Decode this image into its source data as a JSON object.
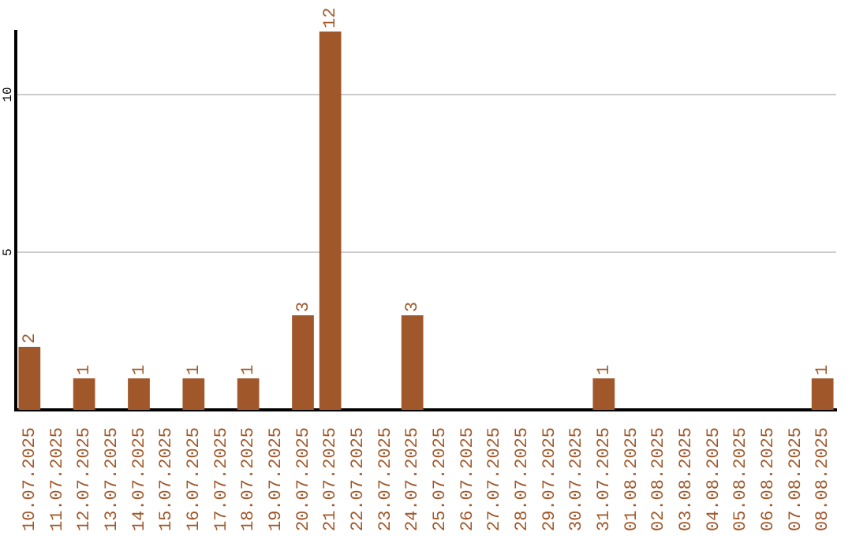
{
  "chart_data": {
    "type": "bar",
    "categories": [
      "10.07.2025",
      "11.07.2025",
      "12.07.2025",
      "13.07.2025",
      "14.07.2025",
      "15.07.2025",
      "16.07.2025",
      "17.07.2025",
      "18.07.2025",
      "19.07.2025",
      "20.07.2025",
      "21.07.2025",
      "22.07.2025",
      "23.07.2025",
      "24.07.2025",
      "25.07.2025",
      "26.07.2025",
      "27.07.2025",
      "28.07.2025",
      "29.07.2025",
      "30.07.2025",
      "31.07.2025",
      "01.08.2025",
      "02.08.2025",
      "03.08.2025",
      "04.08.2025",
      "05.08.2025",
      "06.08.2025",
      "07.08.2025",
      "08.08.2025"
    ],
    "values": [
      2,
      0,
      1,
      0,
      1,
      0,
      1,
      0,
      1,
      0,
      3,
      12,
      0,
      0,
      3,
      0,
      0,
      0,
      0,
      0,
      0,
      1,
      0,
      0,
      0,
      0,
      0,
      0,
      0,
      1
    ],
    "value_labels": [
      "2",
      null,
      "1",
      null,
      "1",
      null,
      "1",
      null,
      "1",
      null,
      "3",
      "12",
      null,
      null,
      "3",
      null,
      null,
      null,
      null,
      null,
      null,
      "1",
      null,
      null,
      null,
      null,
      null,
      null,
      null,
      "1"
    ],
    "color": "#a0582a",
    "ylim": [
      0,
      12
    ],
    "yticks": [
      5,
      10
    ],
    "grid": "y",
    "legend": false
  }
}
